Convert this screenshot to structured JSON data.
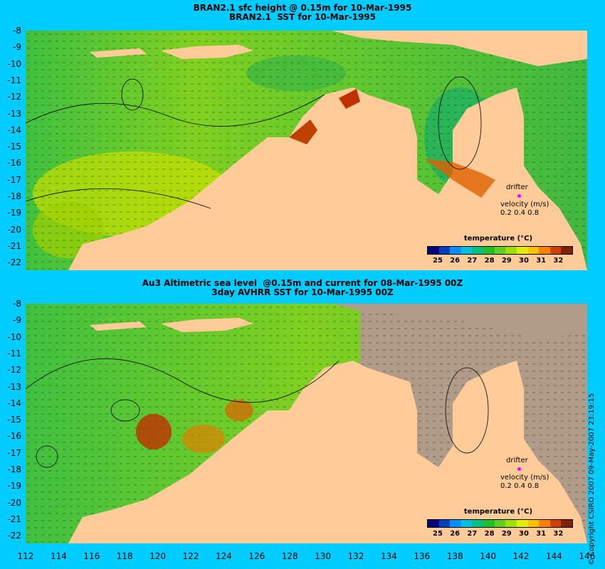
{
  "top_panel": {
    "title_line1": "BRAN2.1 sfc height @ 0.15m for 10-Mar-1995",
    "title_line2": "BRAN2.1  SST for 10-Mar-1995"
  },
  "bottom_panel": {
    "title_line1": "Au3 Altimetric sea level  @0.15m and current for 08-Mar-1995 00Z",
    "title_line2": "3day AVHRR SST for 10-Mar-1995 00Z"
  },
  "axes": {
    "lat_labels": [
      "-8",
      "-9",
      "-10",
      "-11",
      "-12",
      "-13",
      "-14",
      "-15",
      "-16",
      "-17",
      "-18",
      "-19",
      "-20",
      "-21",
      "-22"
    ],
    "lon_labels": [
      "112",
      "114",
      "116",
      "118",
      "120",
      "122",
      "124",
      "126",
      "128",
      "130",
      "132",
      "134",
      "136",
      "138",
      "140",
      "142",
      "144",
      "146"
    ]
  },
  "colorbar": {
    "title": "temperature (°C)",
    "labels": [
      "25",
      "26",
      "27",
      "28",
      "29",
      "30",
      "31",
      "32"
    ],
    "colors": [
      "#000080",
      "#0040c0",
      "#0090ff",
      "#00c0e0",
      "#00c080",
      "#20c020",
      "#60d020",
      "#a0e000",
      "#e0f000",
      "#ffc000",
      "#ff8000",
      "#d04000",
      "#802000"
    ]
  },
  "legend": {
    "drifter": "drifter",
    "velocity": "velocity (m/s)",
    "scale": "0.2 0.4 0.8"
  },
  "copyright": "© Copyright CSIRO 2007   09-May-2007 23:19:15"
}
